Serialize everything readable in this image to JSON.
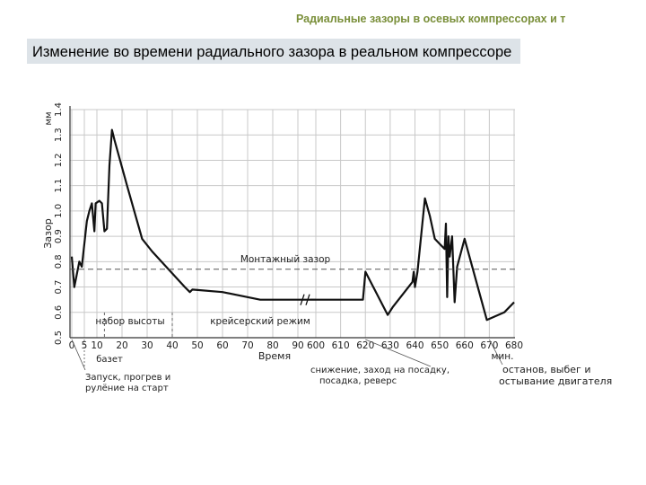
{
  "header": {
    "text": "Радиальные зазоры в осевых компрессорах и т"
  },
  "slide": {
    "title": "Изменение во времени радиального зазора в реальном компрессоре"
  },
  "chart_data": {
    "type": "line",
    "ylabel": "Зазор",
    "yunit": "мм",
    "xlabel": "Время",
    "xunit": "мин.",
    "ylim": [
      0.5,
      1.4
    ],
    "y_ticks": [
      "0.5",
      "0.6",
      "0.7",
      "0.8",
      "0.9",
      "1.0",
      "1.1",
      "1.2",
      "1.3",
      "1.4"
    ],
    "x_ticks": [
      "0",
      "5",
      "10",
      "20",
      "30",
      "40",
      "50",
      "60",
      "70",
      "80",
      "90",
      "600",
      "610",
      "620",
      "630",
      "640",
      "650",
      "660",
      "670",
      "680"
    ],
    "grid": true,
    "series": [
      {
        "points": [
          [
            0,
            0.82
          ],
          [
            1,
            0.7
          ],
          [
            3,
            0.8
          ],
          [
            4,
            0.78
          ],
          [
            6,
            0.96
          ],
          [
            7,
            1.0
          ],
          [
            8,
            1.03
          ],
          [
            9,
            0.92
          ],
          [
            9.5,
            1.03
          ],
          [
            11,
            1.04
          ],
          [
            12,
            1.03
          ],
          [
            13,
            0.92
          ],
          [
            14,
            0.93
          ],
          [
            15,
            1.18
          ],
          [
            16,
            1.32
          ],
          [
            17,
            1.28
          ],
          [
            22,
            1.1
          ],
          [
            28,
            0.89
          ],
          [
            32,
            0.84
          ],
          [
            45,
            0.7
          ],
          [
            47,
            0.68
          ],
          [
            48,
            0.69
          ],
          [
            60,
            0.68
          ],
          [
            75,
            0.65
          ],
          [
            82,
            0.65
          ],
          [
            90,
            0.65
          ],
          [
            95,
            0.65
          ],
          [
            600,
            0.65
          ],
          [
            605,
            0.65
          ],
          [
            610,
            0.65
          ],
          [
            619,
            0.65
          ],
          [
            620,
            0.76
          ],
          [
            629,
            0.59
          ],
          [
            631,
            0.62
          ],
          [
            639,
            0.72
          ],
          [
            639.5,
            0.76
          ],
          [
            640,
            0.7
          ],
          [
            641,
            0.76
          ],
          [
            644,
            1.05
          ],
          [
            646,
            0.98
          ],
          [
            648,
            0.89
          ],
          [
            650,
            0.87
          ],
          [
            652,
            0.85
          ],
          [
            652.5,
            0.95
          ],
          [
            653,
            0.66
          ],
          [
            653.5,
            0.9
          ],
          [
            654,
            0.82
          ],
          [
            655,
            0.9
          ],
          [
            656,
            0.64
          ],
          [
            657,
            0.78
          ],
          [
            660,
            0.89
          ],
          [
            669,
            0.57
          ],
          [
            676,
            0.6
          ],
          [
            680,
            0.64
          ]
        ]
      }
    ],
    "annotations": {
      "mounting_gap": "Монтажный зазор",
      "climb": "набор высоты",
      "cruise": "крейсерский режим",
      "taxi": "базет",
      "start": "Запуск, прогрев и рулёние на старт",
      "descent": "снижение, заход на посадку, посадка, реверс",
      "shutdown": "останов, выбег и остывание двигателя"
    },
    "colors": {
      "line": "#111111",
      "grid": "#c8c8c8",
      "axis": "#333333"
    }
  }
}
